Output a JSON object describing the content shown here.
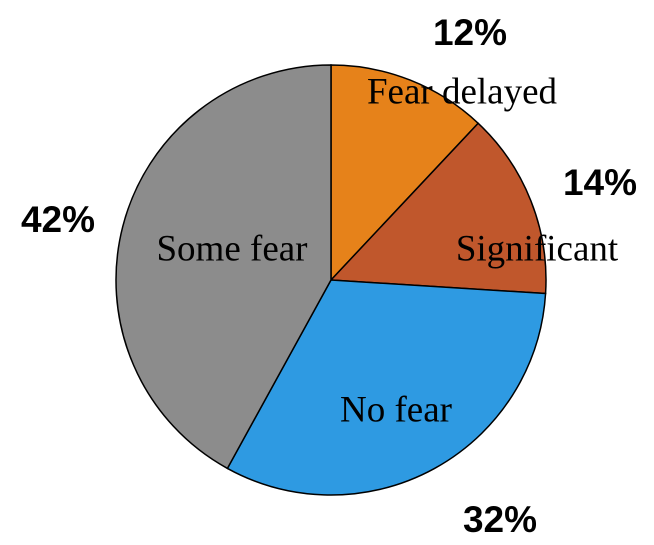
{
  "chart_data": {
    "type": "pie",
    "categories": [
      "Fear delayed",
      "Significant",
      "No fear",
      "Some fear"
    ],
    "values": [
      12,
      14,
      32,
      42
    ],
    "value_labels": [
      "12%",
      "14%",
      "32%",
      "42%"
    ],
    "colors": [
      "#e6821a",
      "#c0572c",
      "#2e9ae2",
      "#8c8c8c"
    ]
  }
}
